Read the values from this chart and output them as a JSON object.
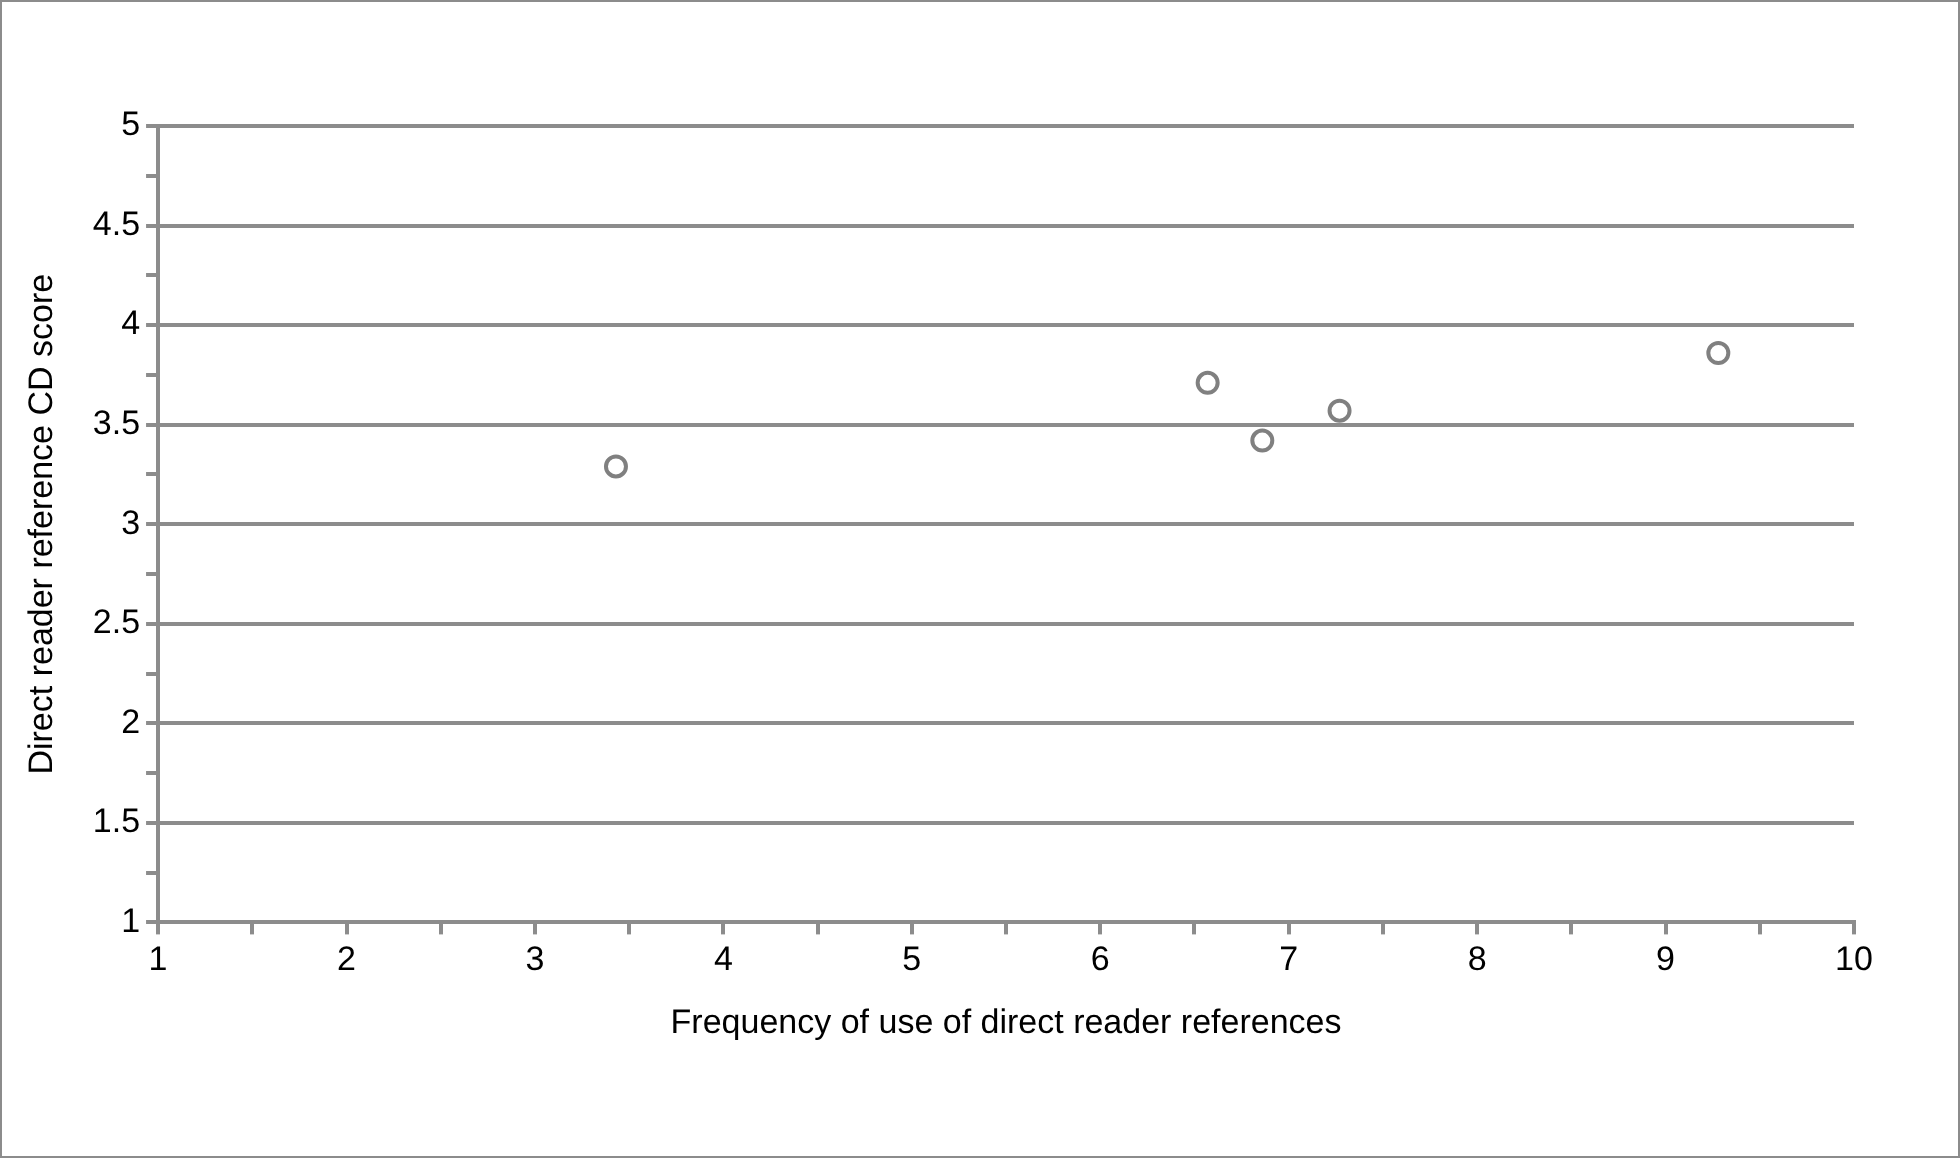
{
  "chart_data": {
    "type": "scatter",
    "xlabel": "Frequency of use of direct reader references",
    "ylabel": "Direct reader reference CD score",
    "x": [
      3.43,
      6.57,
      6.86,
      7.27,
      9.28
    ],
    "values": [
      3.29,
      3.71,
      3.42,
      3.57,
      3.86
    ],
    "color": "#808080",
    "marker": "circle",
    "grid": "y",
    "legend": false,
    "xlim": [
      1,
      10
    ],
    "xticks": [
      1,
      {
        "value": 1.5,
        "label": null
      },
      2,
      {
        "value": 2.5,
        "label": null
      },
      3,
      {
        "value": 3.5,
        "label": null
      },
      4,
      {
        "value": 4.5,
        "label": null
      },
      5,
      {
        "value": 5.5,
        "label": null
      },
      6,
      {
        "value": 6.5,
        "label": null
      },
      7,
      {
        "value": 7.5,
        "label": null
      },
      8,
      {
        "value": 8.5,
        "label": null
      },
      9,
      {
        "value": 9.5,
        "label": null
      },
      10
    ],
    "ylim": [
      1,
      5
    ],
    "yticks": [
      1,
      {
        "value": 1.25,
        "label": null
      },
      1.5,
      {
        "value": 1.75,
        "label": null
      },
      2,
      {
        "value": 2.25,
        "label": null
      },
      2.5,
      {
        "value": 2.75,
        "label": null
      },
      3,
      {
        "value": 3.25,
        "label": null
      },
      3.5,
      {
        "value": 3.75,
        "label": null
      },
      4,
      {
        "value": 4.25,
        "label": null
      },
      4.5,
      {
        "value": 4.75,
        "label": null
      },
      5
    ]
  }
}
